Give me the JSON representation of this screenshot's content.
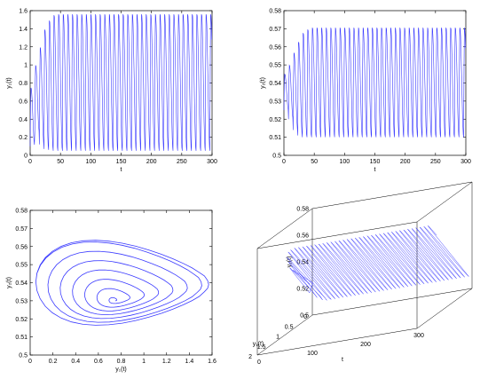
{
  "style": {
    "line_color": "#3b3bff",
    "axis_color": "#000000",
    "background": "#ffffff"
  },
  "chart_data": [
    {
      "id": "y1-vs-t",
      "type": "line",
      "xlabel": "t",
      "ylabel": "y₁(t)",
      "xlim": [
        0,
        300
      ],
      "ylim": [
        0,
        1.6
      ],
      "xticks": [
        0,
        50,
        100,
        150,
        200,
        250,
        300
      ],
      "yticks": [
        0,
        0.2,
        0.4,
        0.6,
        0.8,
        1,
        1.2,
        1.4,
        1.6
      ],
      "ytick_labels": [
        "0",
        "0.2",
        "0.4",
        "0.6",
        "0.8",
        "1",
        "1.2",
        "1.4",
        "1.6"
      ],
      "grid": false,
      "series": [
        {
          "period": 7.6,
          "peaks": [
            0.75,
            1.0,
            1.2,
            1.4,
            1.5,
            1.56
          ],
          "troughs": [
            0.1,
            0.25,
            0.12,
            0.07,
            0.06,
            0.05
          ],
          "steady_peak": 1.57,
          "steady_trough": 0.05,
          "t_end": 300
        }
      ]
    },
    {
      "id": "y2-vs-t",
      "type": "line",
      "xlabel": "t",
      "ylabel": "y₂(t)",
      "xlim": [
        0,
        300
      ],
      "ylim": [
        0.5,
        0.58
      ],
      "xticks": [
        0,
        50,
        100,
        150,
        200,
        250,
        300
      ],
      "yticks": [
        0.5,
        0.51,
        0.52,
        0.53,
        0.54,
        0.55,
        0.56,
        0.57,
        0.58
      ],
      "ytick_labels": [
        "0.5",
        "0.51",
        "0.52",
        "0.53",
        "0.54",
        "0.55",
        "0.56",
        "0.57",
        "0.58"
      ],
      "grid": false,
      "series": [
        {
          "period": 7.6,
          "peaks": [
            0.545,
            0.55,
            0.557,
            0.563,
            0.568,
            0.57
          ],
          "troughs": [
            0.525,
            0.52,
            0.514,
            0.511,
            0.51,
            0.51
          ],
          "steady_peak": 0.571,
          "steady_trough": 0.51,
          "t_end": 300
        }
      ]
    },
    {
      "id": "phase-portrait",
      "type": "line",
      "xlabel": "y₁(t)",
      "ylabel": "y₂(t)",
      "xlim": [
        0,
        1.6
      ],
      "ylim": [
        0.5,
        0.58
      ],
      "xticks": [
        0,
        0.2,
        0.4,
        0.6,
        0.8,
        1,
        1.2,
        1.4,
        1.6
      ],
      "xtick_labels": [
        "0",
        "0.2",
        "0.4",
        "0.6",
        "0.8",
        "1",
        "1.2",
        "1.4",
        "1.6"
      ],
      "yticks": [
        0.5,
        0.51,
        0.52,
        0.53,
        0.54,
        0.55,
        0.56,
        0.57,
        0.58
      ],
      "ytick_labels": [
        "0.5",
        "0.51",
        "0.52",
        "0.53",
        "0.54",
        "0.55",
        "0.56",
        "0.57",
        "0.58"
      ],
      "grid": false,
      "series": [
        {
          "start": [
            0.75,
            0.53
          ],
          "limit_cycle_y1": [
            0.05,
            1.57
          ],
          "limit_cycle_y2": [
            0.51,
            0.571
          ]
        }
      ]
    },
    {
      "id": "trajectory-3d",
      "type": "line",
      "xlabel": "t",
      "ylabel": "y₁(t)",
      "zlabel": "y₂(t)",
      "xlim": [
        0,
        300
      ],
      "ylim": [
        0,
        2
      ],
      "zlim": [
        0.5,
        0.58
      ],
      "xticks": [
        0,
        100,
        200,
        300
      ],
      "yticks": [
        0,
        0.5,
        1,
        1.5,
        2
      ],
      "ytick_labels": [
        "0",
        "0.5",
        "1",
        "1.5",
        "2"
      ],
      "zticks": [
        0.5,
        0.52,
        0.54,
        0.56,
        0.58
      ],
      "ztick_labels": [
        "0.5",
        "0.52",
        "0.54",
        "0.56",
        "0.58"
      ],
      "grid": false,
      "series": [
        {
          "t_end": 300,
          "period": 7.6
        }
      ]
    }
  ]
}
